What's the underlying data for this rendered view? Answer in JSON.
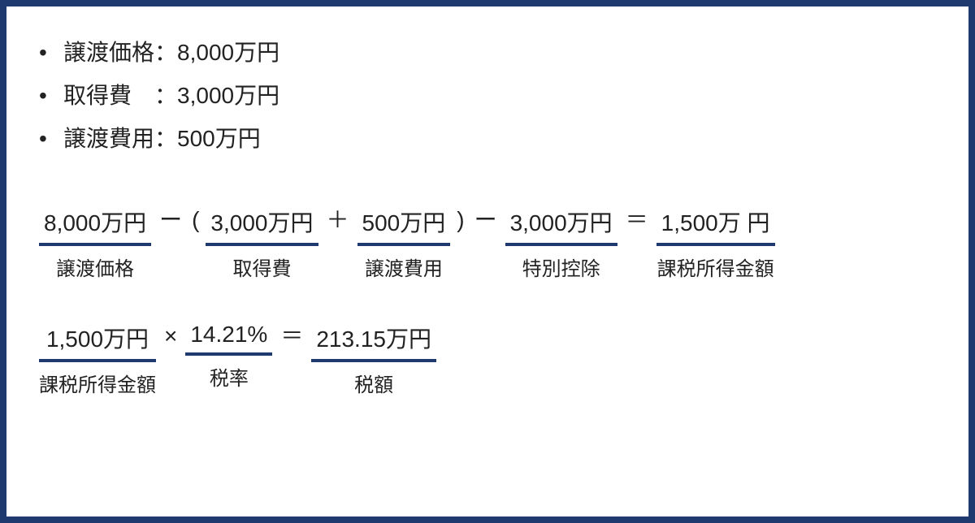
{
  "border_color": "#1e3a6e",
  "underline_color": "#1e3a6e",
  "text_color": "#222222",
  "background_color": "#ffffff",
  "bullet_items": [
    {
      "label": "譲渡価格",
      "value": "8,000万円"
    },
    {
      "label": "取得費　",
      "value": "3,000万円"
    },
    {
      "label": "譲渡費用",
      "value": "500万円"
    }
  ],
  "formula1": {
    "t1": {
      "value": "8,000万円",
      "label": "譲渡価格"
    },
    "op1": "ー",
    "lparen": "(",
    "t2": {
      "value": "3,000万円",
      "label": "取得費"
    },
    "op2": "＋",
    "t3": {
      "value": "500万円",
      "label": "譲渡費用"
    },
    "rparen": ")",
    "op3": "ー",
    "t4": {
      "value": "3,000万円",
      "label": "特別控除"
    },
    "op4": "＝",
    "t5": {
      "value": "1,500万 円",
      "label": "課税所得金額"
    }
  },
  "formula2": {
    "t1": {
      "value": "1,500万円",
      "label": "課税所得金額"
    },
    "op1": "×",
    "t2": {
      "value": "14.21%",
      "label": "税率"
    },
    "op2": "＝",
    "t3": {
      "value": "213.15万円",
      "label": "税額"
    }
  }
}
